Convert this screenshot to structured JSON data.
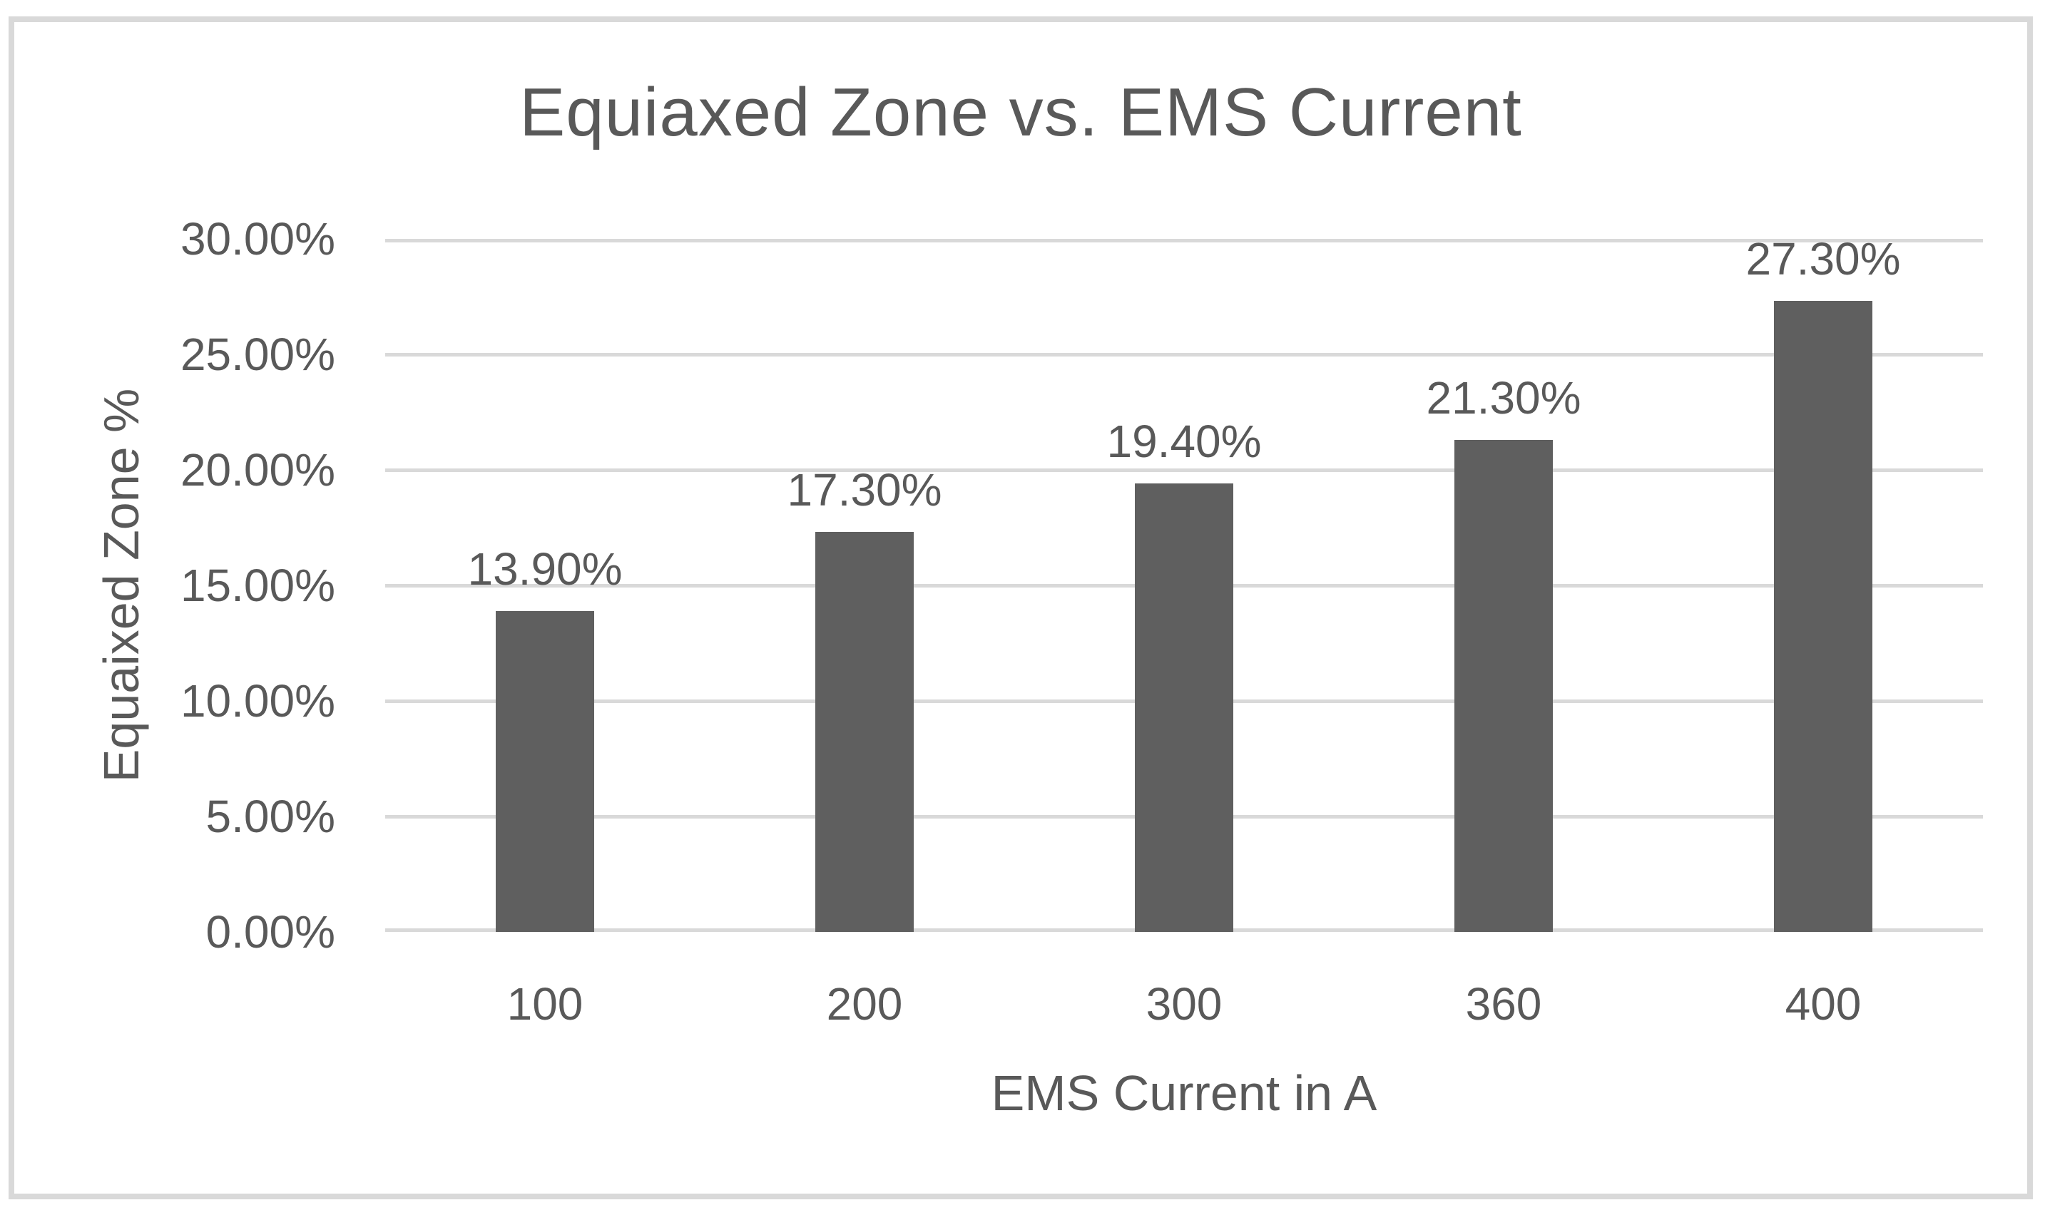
{
  "chart_data": {
    "type": "bar",
    "title": "Equiaxed Zone vs. EMS Current",
    "xlabel": "EMS Current in A",
    "ylabel": "Equaixed Zone %",
    "categories": [
      "100",
      "200",
      "300",
      "360",
      "400"
    ],
    "values": [
      13.9,
      17.3,
      19.4,
      21.3,
      27.3
    ],
    "data_labels": [
      "13.90%",
      "17.30%",
      "19.40%",
      "21.30%",
      "27.30%"
    ],
    "ytick_labels": [
      "0.00%",
      "5.00%",
      "10.00%",
      "15.00%",
      "20.00%",
      "25.00%",
      "30.00%"
    ],
    "ytick_values": [
      0,
      5,
      10,
      15,
      20,
      25,
      30
    ],
    "ylim": [
      0,
      30
    ],
    "grid": true,
    "legend": "none"
  },
  "colors": {
    "bar": "#5f5f5f",
    "text": "#595959",
    "gridline": "#d9d9d9",
    "frame_border": "#d9d9d9",
    "background": "#ffffff"
  }
}
